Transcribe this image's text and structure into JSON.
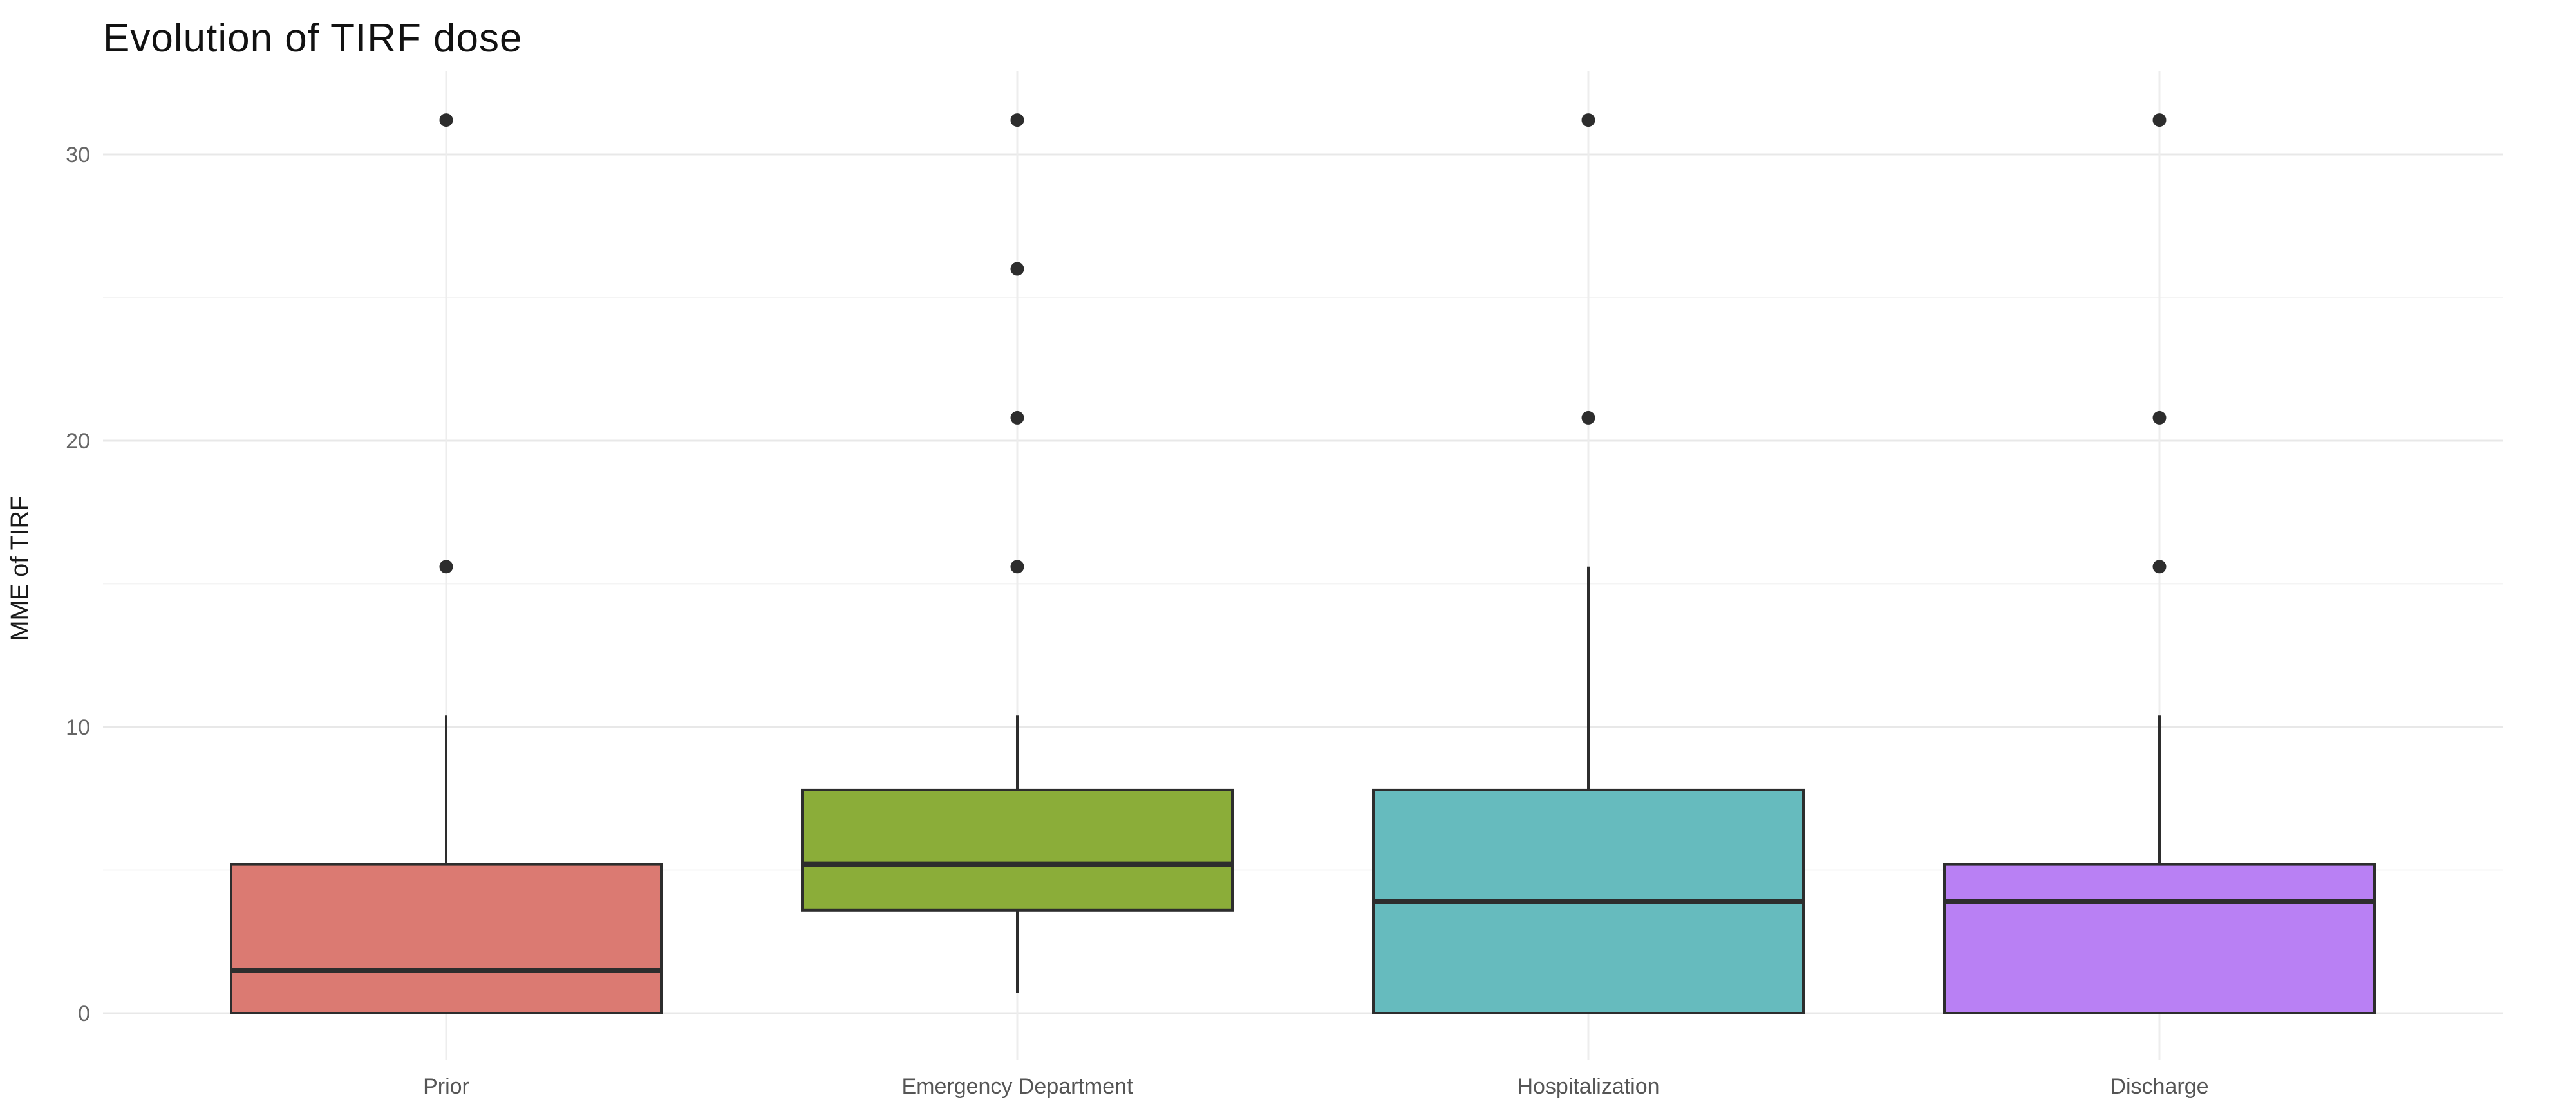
{
  "page": {
    "background": "#ffffff"
  },
  "chart_data": {
    "type": "boxplot",
    "title": "Evolution of TIRF dose",
    "ylabel": "MME of TIRF",
    "xlabel": "",
    "categories": [
      "Prior",
      "Emergency Department",
      "Hospitalization",
      "Discharge"
    ],
    "ylim": [
      0,
      31.2
    ],
    "yticks": [
      0,
      10,
      20,
      30
    ],
    "yminor": [
      5,
      15,
      25
    ],
    "grid": "horizontal major+minor, vertical line at each category center",
    "legend": "none",
    "series": [
      {
        "name": "Prior",
        "color": "#db7a72",
        "whisker_low": 0,
        "q1": 0,
        "median": 1.5,
        "q3": 5.2,
        "whisker_high": 10.4,
        "outliers": [
          15.6,
          31.2
        ]
      },
      {
        "name": "Emergency Department",
        "color": "#8bad39",
        "whisker_low": 0.7,
        "q1": 3.6,
        "median": 5.2,
        "q3": 7.8,
        "whisker_high": 10.4,
        "outliers": [
          15.6,
          20.8,
          26.0,
          31.2
        ]
      },
      {
        "name": "Hospitalization",
        "color": "#66bbbe",
        "whisker_low": 0,
        "q1": 0,
        "median": 3.9,
        "q3": 7.8,
        "whisker_high": 15.6,
        "outliers": [
          20.8,
          31.2
        ]
      },
      {
        "name": "Discharge",
        "color": "#b980f4",
        "whisker_low": 0,
        "q1": 0,
        "median": 3.9,
        "q3": 5.2,
        "whisker_high": 10.4,
        "outliers": [
          15.6,
          20.8,
          31.2
        ]
      }
    ]
  },
  "colors": {
    "box_outline": "#2d2d2d",
    "median_line": "#2d2d2d",
    "outlier_dot": "#2d2d2d",
    "grid_major": "#e8e8e8",
    "grid_minor": "#f4f4f4",
    "grid_vertical": "#ededed",
    "tick_text": "#666666",
    "category_text": "#555555"
  }
}
